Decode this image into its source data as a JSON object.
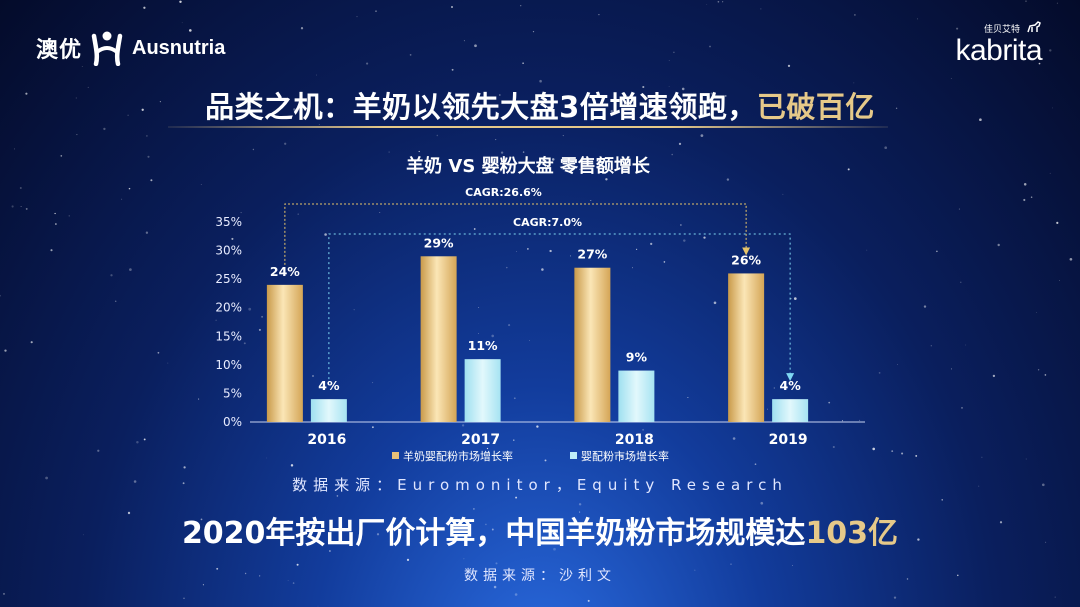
{
  "logos": {
    "left_cn": "澳优",
    "left_en": "Ausnutria",
    "right_small": "佳贝艾特",
    "right_big": "kabrita"
  },
  "headline": {
    "main": "品类之机：羊奶以领先大盘3倍增速领跑，",
    "highlight": "已破百亿"
  },
  "chart_data": {
    "type": "bar",
    "title": "羊奶 VS 婴粉大盘 零售额增长",
    "categories": [
      "2016",
      "2017",
      "2018",
      "2019"
    ],
    "series": [
      {
        "name": "羊奶婴配粉市场增长率",
        "values": [
          24,
          29,
          27,
          26
        ],
        "labels": [
          "24%",
          "29%",
          "27%",
          "26%"
        ],
        "color": "#e8c078"
      },
      {
        "name": "婴配粉市场增长率",
        "values": [
          4,
          11,
          9,
          4
        ],
        "labels": [
          "4%",
          "11%",
          "9%",
          "4%"
        ],
        "color": "#bfeef8"
      }
    ],
    "yticks": [
      "0%",
      "5%",
      "10%",
      "15%",
      "20%",
      "25%",
      "30%",
      "35%"
    ],
    "ylim": [
      0,
      35
    ],
    "annotations": [
      {
        "text": "CAGR:26.6%",
        "series": 0,
        "from": "2016",
        "to": "2019",
        "color": "#e6c46a"
      },
      {
        "text": "CAGR:7.0%",
        "series": 1,
        "from": "2016",
        "to": "2019",
        "color": "#7fd8f2"
      }
    ],
    "legend_position": "bottom"
  },
  "source_line": "数据来源：Euromonitor，Equity Research",
  "bottom_headline": {
    "main": "2020年按出厂价计算，中国羊奶粉市场规模达",
    "highlight": "103亿"
  },
  "source_line2": "数据来源：沙利文"
}
